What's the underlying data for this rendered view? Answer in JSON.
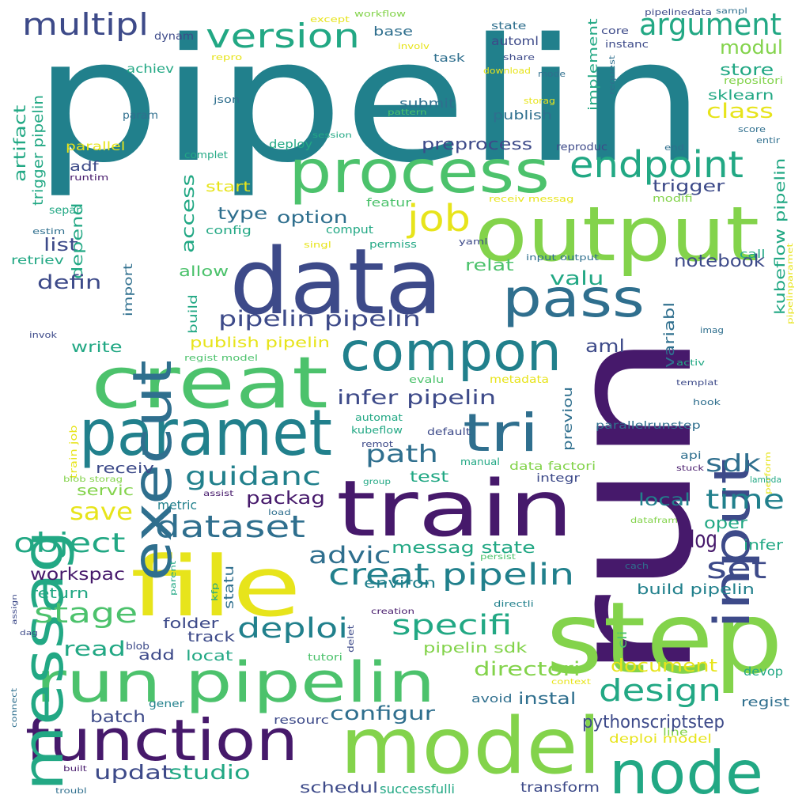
{
  "palette": {
    "dark_purple": "#46196b",
    "indigo": "#3d4a89",
    "slate_blue": "#2f6f8e",
    "teal": "#21808c",
    "green_teal": "#22a884",
    "green": "#4cc26c",
    "lime": "#83d34b",
    "yellow": "#e7e41b"
  },
  "words": [
    "pipelin",
    "run",
    "step",
    "data",
    "output",
    "file",
    "model",
    "train",
    "creat",
    "paramet",
    "function",
    "run pipelin",
    "compon",
    "process",
    "node",
    "messag",
    "execut",
    "input",
    "pass",
    "tri",
    "job",
    "endpoint",
    "version",
    "argument",
    "multipl",
    "modul",
    "store",
    "class",
    "repositori",
    "sklearn",
    "state",
    "automl",
    "dynam",
    "except",
    "workflow",
    "pipelinedata",
    "sampl",
    "core",
    "instanc",
    "request",
    "achiev",
    "repro",
    "base",
    "involv",
    "task",
    "share",
    "download",
    "mode",
    "implement",
    "json",
    "param",
    "storag",
    "pattern",
    "submit",
    "publish",
    "score",
    "entir",
    "kubeflow pipelin",
    "session",
    "deploy",
    "preprocess",
    "reproduc",
    "end",
    "complet",
    "parallel",
    "adf",
    "runtim",
    "trigger",
    "trigger pipelin",
    "artifact",
    "start",
    "receiv messag",
    "modifi",
    "separ",
    "type",
    "option",
    "featur",
    "estim",
    "config",
    "comput",
    "singl",
    "yaml",
    "permiss",
    "call",
    "list",
    "depend",
    "access",
    "input output",
    "notebook",
    "retriev",
    "relat",
    "defin",
    "valu",
    "allow",
    "import",
    "pipelinparamet",
    "pipelin pipelin",
    "build",
    "variabl",
    "invok",
    "imag",
    "write",
    "publish pipelin",
    "aml",
    "regist model",
    "activ",
    "evalu",
    "metadata",
    "templat",
    "infer pipelin",
    "previou",
    "hook",
    "automat",
    "train job",
    "kubeflow",
    "default",
    "parallelrunstep",
    "perform",
    "remot",
    "path",
    "sdk",
    "guidanc",
    "manual",
    "api",
    "receiv",
    "data factori",
    "integr",
    "stuck",
    "blob storag",
    "group",
    "test",
    "servic",
    "lambda",
    "assist",
    "metric",
    "packag",
    "local",
    "time",
    "save",
    "load",
    "datafram",
    "dataset",
    "oper",
    "object",
    "log",
    "kfp",
    "parent",
    "assign",
    "infer",
    "messag state",
    "advic",
    "persist",
    "cach",
    "set",
    "workspac",
    "statu",
    "creat pipelin",
    "return",
    "build pipelin",
    "environ",
    "stage",
    "creation",
    "directli",
    "cli",
    "delet",
    "dag",
    "folder",
    "deploi",
    "specifi",
    "track",
    "blob",
    "read",
    "add",
    "pipelin sdk",
    "locat",
    "tutori",
    "document",
    "context",
    "devop",
    "design",
    "connect",
    "directori",
    "gener",
    "avoid",
    "instal",
    "regist",
    "configur",
    "batch",
    "resourc",
    "line",
    "pythonscriptstep",
    "deploi model",
    "updat",
    "studio",
    "built",
    "schedul",
    "successfulli",
    "transform",
    "troubl"
  ]
}
